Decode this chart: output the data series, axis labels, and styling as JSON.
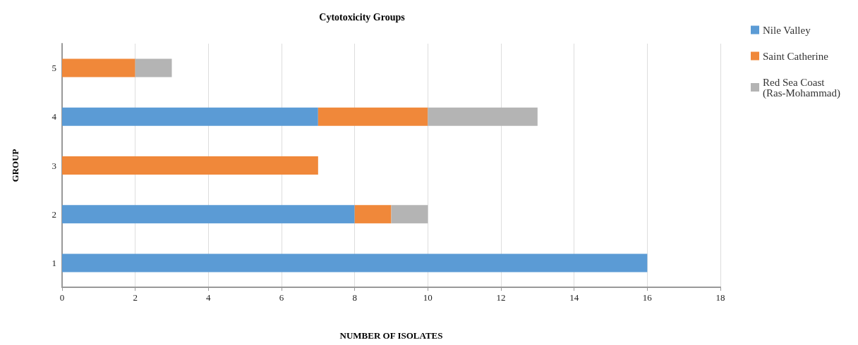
{
  "chart_data": {
    "type": "bar",
    "title": "Cytotoxicity Groups",
    "xlabel": "NUMBER OF ISOLATES",
    "ylabel": "GROUP",
    "orientation": "horizontal",
    "stacked": true,
    "categories": [
      "5",
      "4",
      "3",
      "2",
      "1"
    ],
    "series": [
      {
        "name": "Nile Valley",
        "color": "#5b9bd5",
        "values": [
          null,
          7,
          null,
          8,
          16
        ]
      },
      {
        "name": "Saint Catherine",
        "color": "#f0883a",
        "values": [
          2,
          3,
          7,
          1,
          null
        ]
      },
      {
        "name": "Red Sea Coast\n(Ras-Mohammad)",
        "color": "#b4b4b4",
        "values": [
          1,
          3,
          null,
          1,
          null
        ]
      }
    ],
    "xlim": [
      0,
      18
    ],
    "xticks": [
      0,
      2,
      4,
      6,
      8,
      10,
      12,
      14,
      16,
      18
    ],
    "grid": "x",
    "legend": "top right"
  }
}
